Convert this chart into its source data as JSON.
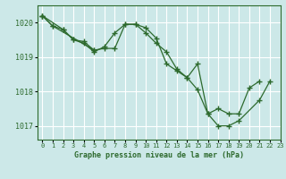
{
  "background_color": "#cce8e8",
  "grid_color": "#ffffff",
  "line_color": "#2d6a2d",
  "marker_color": "#2d6a2d",
  "title": "Graphe pression niveau de la mer (hPa)",
  "xlim": [
    -0.5,
    23
  ],
  "ylim": [
    1016.6,
    1020.5
  ],
  "yticks": [
    1017,
    1018,
    1019,
    1020
  ],
  "xticks": [
    0,
    1,
    2,
    3,
    4,
    5,
    6,
    7,
    8,
    9,
    10,
    11,
    12,
    13,
    14,
    15,
    16,
    17,
    18,
    19,
    20,
    21,
    22,
    23
  ],
  "series": [
    {
      "points": [
        [
          0,
          1020.2
        ],
        [
          1,
          1019.9
        ],
        [
          2,
          1019.8
        ],
        [
          3,
          1019.5
        ],
        [
          4,
          1019.45
        ],
        [
          5,
          1019.2
        ],
        [
          6,
          1019.25
        ],
        [
          7,
          1019.25
        ],
        [
          8,
          1019.95
        ],
        [
          9,
          1019.95
        ],
        [
          10,
          1019.7
        ],
        [
          11,
          1019.4
        ],
        [
          12,
          1019.15
        ],
        [
          13,
          1018.65
        ],
        [
          14,
          1018.4
        ],
        [
          15,
          1018.05
        ],
        [
          16,
          1017.35
        ],
        [
          17,
          1017.5
        ],
        [
          18,
          1017.35
        ],
        [
          19,
          1017.35
        ],
        [
          20,
          1018.1
        ],
        [
          21,
          1018.3
        ]
      ]
    },
    {
      "points": [
        [
          0,
          1020.2
        ],
        [
          1,
          1019.9
        ],
        [
          5,
          1019.2
        ]
      ]
    },
    {
      "points": [
        [
          0,
          1020.2
        ],
        [
          2,
          1019.8
        ],
        [
          3,
          1019.5
        ],
        [
          4,
          1019.4
        ],
        [
          5,
          1019.15
        ],
        [
          6,
          1019.3
        ],
        [
          7,
          1019.7
        ],
        [
          8,
          1019.95
        ],
        [
          9,
          1019.95
        ],
        [
          10,
          1019.85
        ],
        [
          11,
          1019.55
        ],
        [
          12,
          1018.8
        ],
        [
          13,
          1018.6
        ],
        [
          14,
          1018.4
        ],
        [
          15,
          1018.8
        ],
        [
          16,
          1017.35
        ],
        [
          17,
          1017.0
        ],
        [
          18,
          1017.0
        ],
        [
          19,
          1017.15
        ],
        [
          21,
          1017.75
        ],
        [
          22,
          1018.3
        ]
      ]
    }
  ]
}
